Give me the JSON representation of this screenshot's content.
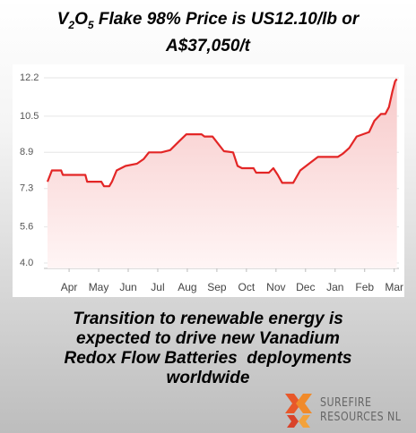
{
  "chart_data": {
    "type": "line",
    "title": [
      "V",
      "2",
      "O",
      "5",
      " Flake 98% Price is US12.10/lb or",
      "A$37,050/t"
    ],
    "x": [
      0.27,
      0.42,
      0.73,
      0.79,
      1.55,
      1.61,
      2.09,
      2.18,
      2.36,
      2.45,
      2.61,
      2.91,
      3.3,
      3.52,
      3.7,
      4.12,
      4.42,
      4.73,
      4.97,
      5.48,
      5.58,
      5.85,
      6.03,
      6.24,
      6.55,
      6.7,
      6.85,
      7.24,
      7.33,
      7.76,
      7.91,
      8.06,
      8.21,
      8.58,
      8.82,
      9.12,
      9.42,
      10.09,
      10.27,
      10.48,
      10.73,
      11.15,
      11.33,
      11.55,
      11.7,
      11.82,
      11.94,
      12.03,
      12.09
    ],
    "values": [
      7.6,
      8.1,
      8.1,
      7.9,
      7.9,
      7.6,
      7.6,
      7.4,
      7.4,
      7.6,
      8.1,
      8.3,
      8.4,
      8.6,
      8.9,
      8.9,
      9.0,
      9.4,
      9.7,
      9.7,
      9.6,
      9.6,
      9.3,
      8.95,
      8.9,
      8.3,
      8.2,
      8.2,
      8.0,
      8.0,
      8.2,
      7.9,
      7.55,
      7.55,
      8.1,
      8.4,
      8.7,
      8.7,
      8.85,
      9.1,
      9.6,
      9.8,
      10.3,
      10.6,
      10.6,
      10.9,
      11.6,
      12.05,
      12.15
    ],
    "color": "#e32626",
    "xlim": [
      0.27,
      12.1
    ],
    "xticks": [
      {
        "value": 1,
        "label": "Apr"
      },
      {
        "value": 2,
        "label": "May"
      },
      {
        "value": 3,
        "label": "Jun"
      },
      {
        "value": 4,
        "label": "Jul"
      },
      {
        "value": 5,
        "label": "Aug"
      },
      {
        "value": 6,
        "label": "Sep"
      },
      {
        "value": 7,
        "label": "Oct"
      },
      {
        "value": 8,
        "label": "Nov"
      },
      {
        "value": 9,
        "label": "Dec"
      },
      {
        "value": 10,
        "label": "Jan"
      },
      {
        "value": 11,
        "label": "Feb"
      },
      {
        "value": 12,
        "label": "Mar"
      }
    ],
    "ylim": [
      4.0,
      12.2
    ],
    "yticks": [
      {
        "value": 4.0,
        "label": "4.0"
      },
      5.6,
      7.3,
      8.9,
      10.5,
      12.2
    ],
    "grid": true
  },
  "caption": [
    "Transition to renewable energy is",
    "expected to drive new Vanadium",
    "Redox Flow Batteries  deployments",
    "worldwide"
  ],
  "logo": [
    "SUREFIRE",
    "RESOURCES NL"
  ]
}
